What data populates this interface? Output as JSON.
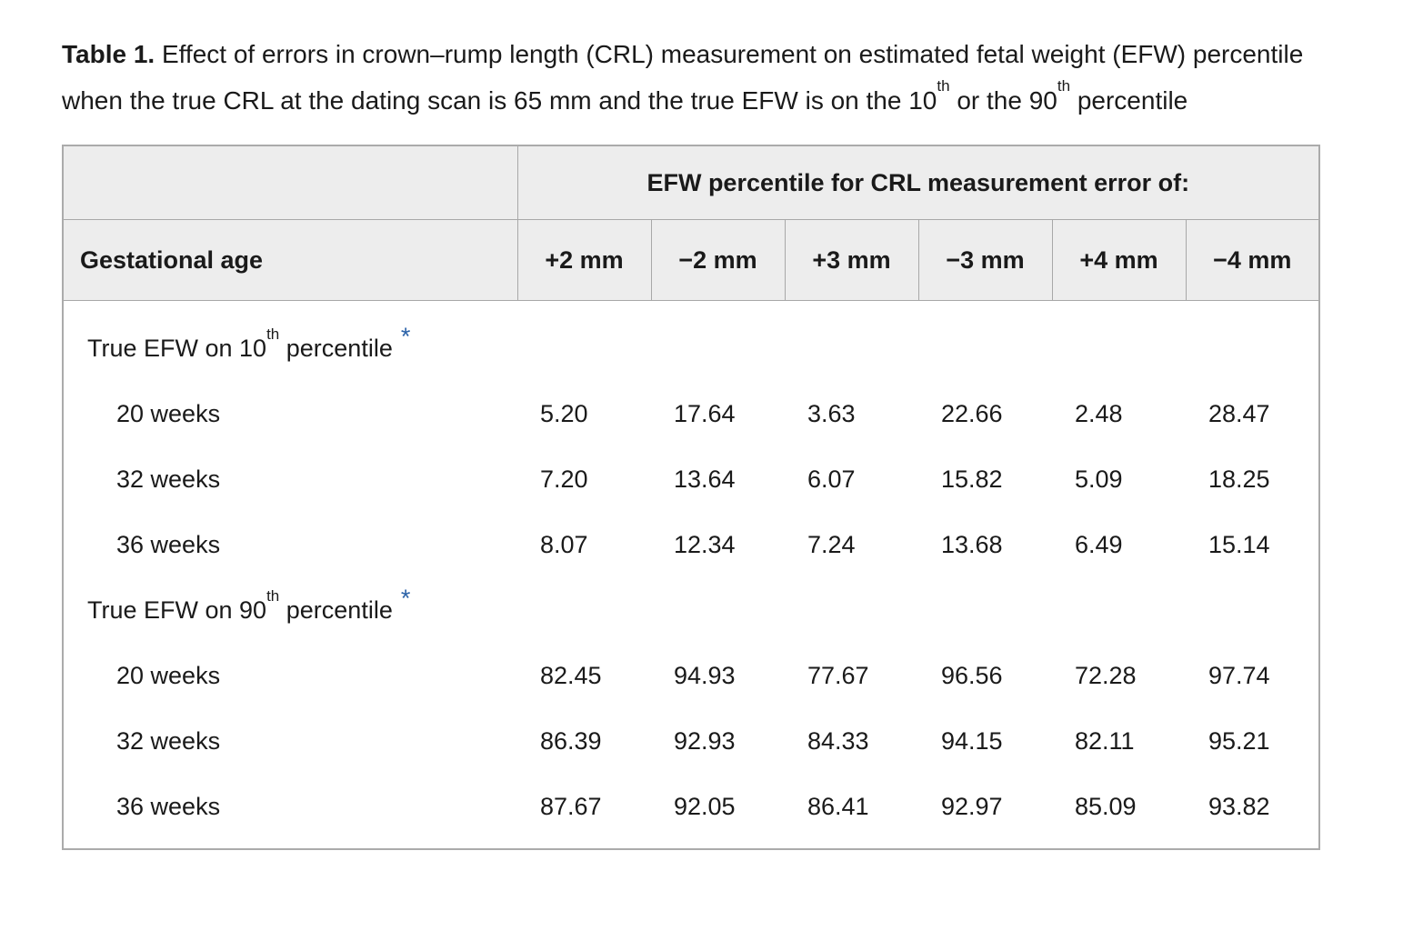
{
  "caption": {
    "segments": [
      {
        "text": "Table 1.",
        "bold": true
      },
      {
        "text": " Effect of errors in crown–rump length (CRL) measurement on estimated fetal weight (EFW) percentile when the true CRL at the dating scan is 65 mm and the true EFW is on the 10"
      },
      {
        "text": "th",
        "sup": true
      },
      {
        "text": " or the 90"
      },
      {
        "text": "th",
        "sup": true
      },
      {
        "text": " percentile"
      }
    ]
  },
  "table": {
    "span_header": "EFW percentile for CRL measurement error of:",
    "row_header": "Gestational age",
    "columns": [
      "+2 mm",
      "−2 mm",
      "+3 mm",
      "−3 mm",
      "+4 mm",
      "−4 mm"
    ],
    "sections": [
      {
        "label": {
          "pre": "True EFW on 10",
          "sup": "th",
          "post": " percentile"
        },
        "footnote_marker": "*",
        "rows": [
          {
            "label": "20 weeks",
            "values": [
              "5.20",
              "17.64",
              "3.63",
              "22.66",
              "2.48",
              "28.47"
            ]
          },
          {
            "label": "32 weeks",
            "values": [
              "7.20",
              "13.64",
              "6.07",
              "15.82",
              "5.09",
              "18.25"
            ]
          },
          {
            "label": "36 weeks",
            "values": [
              "8.07",
              "12.34",
              "7.24",
              "13.68",
              "6.49",
              "15.14"
            ]
          }
        ]
      },
      {
        "label": {
          "pre": "True EFW on 90",
          "sup": "th",
          "post": " percentile"
        },
        "footnote_marker": "*",
        "rows": [
          {
            "label": "20 weeks",
            "values": [
              "82.45",
              "94.93",
              "77.67",
              "96.56",
              "72.28",
              "97.74"
            ]
          },
          {
            "label": "32 weeks",
            "values": [
              "86.39",
              "92.93",
              "84.33",
              "94.15",
              "82.11",
              "95.21"
            ]
          },
          {
            "label": "36 weeks",
            "values": [
              "87.67",
              "92.05",
              "86.41",
              "92.97",
              "85.09",
              "93.82"
            ]
          }
        ]
      }
    ]
  },
  "colors": {
    "accent_blue": "#2b62a8",
    "header_bg": "#ededed",
    "border_inner": "#a8a8a8",
    "border_outer": "#ababab",
    "text": "#1a1a1a"
  }
}
